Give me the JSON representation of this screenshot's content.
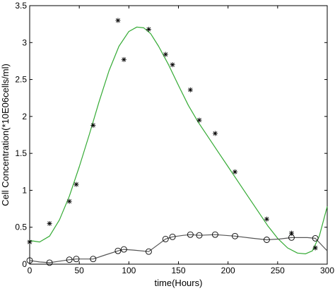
{
  "chart_data": {
    "type": "scatter",
    "title": "",
    "xlabel": "time(Hours)",
    "ylabel": "Cell Concentration(*10E06cells/ml)",
    "xlim": [
      0,
      300
    ],
    "ylim": [
      0,
      3.5
    ],
    "xticks": [
      0,
      50,
      100,
      150,
      200,
      250,
      300
    ],
    "yticks": [
      0,
      0.5,
      1,
      1.5,
      2,
      2.5,
      3,
      3.5
    ],
    "grid": false,
    "legend": "none",
    "series": [
      {
        "marker": "asterisk",
        "color": "#000000",
        "points": [
          [
            0,
            0.3
          ],
          [
            20,
            0.55
          ],
          [
            40,
            0.85
          ],
          [
            47,
            1.08
          ],
          [
            64,
            1.88
          ],
          [
            89,
            3.3
          ],
          [
            95,
            2.77
          ],
          [
            120,
            3.18
          ],
          [
            137,
            2.84
          ],
          [
            144,
            2.7
          ],
          [
            162,
            2.36
          ],
          [
            171,
            1.95
          ],
          [
            187,
            1.77
          ],
          [
            207,
            1.25
          ],
          [
            239,
            0.61
          ],
          [
            264,
            0.42
          ],
          [
            288,
            0.22
          ]
        ]
      },
      {
        "marker": "circle",
        "color": "#000000",
        "points": [
          [
            0,
            0.05
          ],
          [
            20,
            0.02
          ],
          [
            40,
            0.06
          ],
          [
            47,
            0.07
          ],
          [
            64,
            0.07
          ],
          [
            89,
            0.18
          ],
          [
            95,
            0.2
          ],
          [
            120,
            0.17
          ],
          [
            137,
            0.34
          ],
          [
            144,
            0.37
          ],
          [
            162,
            0.4
          ],
          [
            171,
            0.39
          ],
          [
            187,
            0.4
          ],
          [
            207,
            0.38
          ],
          [
            239,
            0.33
          ],
          [
            264,
            0.36
          ],
          [
            288,
            0.35
          ]
        ]
      },
      {
        "style": "line",
        "color": "#33aa33",
        "points": [
          [
            0,
            0.32
          ],
          [
            10,
            0.3
          ],
          [
            20,
            0.38
          ],
          [
            30,
            0.6
          ],
          [
            40,
            0.92
          ],
          [
            50,
            1.32
          ],
          [
            60,
            1.75
          ],
          [
            70,
            2.2
          ],
          [
            80,
            2.62
          ],
          [
            90,
            2.95
          ],
          [
            100,
            3.15
          ],
          [
            108,
            3.21
          ],
          [
            115,
            3.2
          ],
          [
            122,
            3.12
          ],
          [
            130,
            2.95
          ],
          [
            140,
            2.7
          ],
          [
            150,
            2.42
          ],
          [
            160,
            2.15
          ],
          [
            170,
            1.92
          ],
          [
            180,
            1.72
          ],
          [
            190,
            1.52
          ],
          [
            200,
            1.32
          ],
          [
            210,
            1.12
          ],
          [
            220,
            0.92
          ],
          [
            230,
            0.72
          ],
          [
            240,
            0.52
          ],
          [
            250,
            0.35
          ],
          [
            260,
            0.22
          ],
          [
            270,
            0.15
          ],
          [
            278,
            0.14
          ],
          [
            285,
            0.18
          ],
          [
            292,
            0.38
          ],
          [
            300,
            0.78
          ]
        ]
      },
      {
        "style": "line",
        "color": "#555555",
        "points": [
          [
            0,
            0.05
          ],
          [
            10,
            0.03
          ],
          [
            20,
            0.02
          ],
          [
            30,
            0.04
          ],
          [
            40,
            0.06
          ],
          [
            47,
            0.07
          ],
          [
            64,
            0.07
          ],
          [
            75,
            0.12
          ],
          [
            89,
            0.18
          ],
          [
            95,
            0.2
          ],
          [
            105,
            0.19
          ],
          [
            120,
            0.17
          ],
          [
            130,
            0.27
          ],
          [
            137,
            0.34
          ],
          [
            144,
            0.37
          ],
          [
            155,
            0.39
          ],
          [
            162,
            0.4
          ],
          [
            171,
            0.39
          ],
          [
            187,
            0.4
          ],
          [
            207,
            0.38
          ],
          [
            225,
            0.35
          ],
          [
            239,
            0.33
          ],
          [
            252,
            0.34
          ],
          [
            264,
            0.36
          ],
          [
            280,
            0.36
          ],
          [
            288,
            0.35
          ],
          [
            295,
            0.25
          ],
          [
            300,
            0.18
          ]
        ]
      }
    ]
  }
}
